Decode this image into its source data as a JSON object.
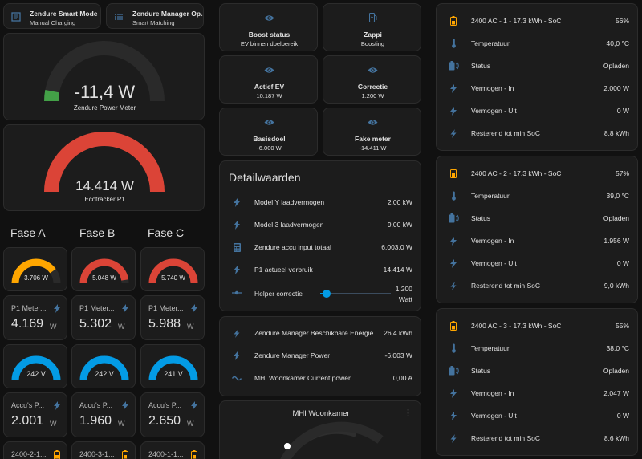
{
  "tiles_top": [
    {
      "title": "Zendure Smart Mode",
      "sub": "Manual Charging",
      "icon": "form-icon"
    },
    {
      "title": "Zendure Manager Op...",
      "sub": "Smart Matching",
      "icon": "list-icon"
    }
  ],
  "gauge_power": {
    "value": "-11,4 W",
    "label": "Zendure Power Meter",
    "fraction": 0.06,
    "color": "#43a047"
  },
  "gauge_ecotracker": {
    "value": "14.414 W",
    "label": "Ecotracker P1",
    "fraction": 1.0,
    "color": "#db4437"
  },
  "phases": {
    "titles": [
      "Fase A",
      "Fase B",
      "Fase C"
    ],
    "power_gauges": [
      {
        "value": "3.706 W",
        "fraction": 0.8,
        "color": "#ffa600"
      },
      {
        "value": "5.048 W",
        "fraction": 0.95,
        "color": "#db4437"
      },
      {
        "value": "5.740 W",
        "fraction": 1.0,
        "color": "#db4437"
      }
    ],
    "meters": [
      {
        "name": "P1 Meter...",
        "value": "4.169",
        "unit": "W"
      },
      {
        "name": "P1 Meter...",
        "value": "5.302",
        "unit": "W"
      },
      {
        "name": "P1 Meter...",
        "value": "5.988",
        "unit": "W"
      }
    ],
    "voltage_gauges": [
      {
        "value": "242 V",
        "fraction": 1.0,
        "color": "#039be5"
      },
      {
        "value": "242 V",
        "fraction": 1.0,
        "color": "#039be5"
      },
      {
        "value": "241 V",
        "fraction": 1.0,
        "color": "#039be5"
      }
    ],
    "accus": [
      {
        "name": "Accu's P...",
        "value": "2.001",
        "unit": "W"
      },
      {
        "name": "Accu's P...",
        "value": "1.960",
        "unit": "W"
      },
      {
        "name": "Accu's P...",
        "value": "2.650",
        "unit": "W"
      }
    ],
    "bottom": [
      "2400-2-1...",
      "2400-3-1...",
      "2400-1-1..."
    ]
  },
  "status_tiles": [
    {
      "title": "Boost status",
      "value": "EV binnen doelbereik",
      "icon": "eye-icon"
    },
    {
      "title": "Zappi",
      "value": "Boosting",
      "icon": "ev-station-icon"
    },
    {
      "title": "Actief EV",
      "value": "10.187 W",
      "icon": "eye-icon"
    },
    {
      "title": "Correctie",
      "value": "1.200 W",
      "icon": "eye-icon"
    },
    {
      "title": "Basisdoel",
      "value": "-6.000 W",
      "icon": "eye-icon"
    },
    {
      "title": "Fake meter",
      "value": "-14.411 W",
      "icon": "eye-icon"
    }
  ],
  "detail": {
    "title": "Detailwaarden",
    "rows": [
      {
        "label": "Model Y laadvermogen",
        "value": "2,00 kW",
        "icon": "flash-icon"
      },
      {
        "label": "Model 3 laadvermogen",
        "value": "9,00 kW",
        "icon": "flash-icon"
      },
      {
        "label": "Zendure accu input totaal",
        "value": "6.003,0 W",
        "icon": "calculator-icon"
      },
      {
        "label": "P1 actueel verbruik",
        "value": "14.414 W",
        "icon": "flash-icon"
      }
    ],
    "slider": {
      "label": "Helper correctie",
      "value": "1.200",
      "unit": "Watt",
      "fraction": 0.09
    }
  },
  "manager": {
    "rows": [
      {
        "label": "Zendure Manager Beschikbare Energie",
        "value": "26,4 kWh",
        "icon": "lightning-icon"
      },
      {
        "label": "Zendure Manager Power",
        "value": "-6.003 W",
        "icon": "flash-icon"
      },
      {
        "label": "MHI Woonkamer Current power",
        "value": "0,00 A",
        "icon": "current-ac-icon"
      }
    ]
  },
  "climate": {
    "title": "MHI Woonkamer",
    "menu": "⋮"
  },
  "batteries": [
    {
      "name": "2400 AC - 1 - 17.3 kWh - SoC",
      "soc": "56%",
      "rows": [
        {
          "label": "Temperatuur",
          "value": "40,0 °C",
          "icon": "thermometer-icon"
        },
        {
          "label": "Status",
          "value": "Opladen",
          "icon": "battery-charging-icon"
        },
        {
          "label": "Vermogen - In",
          "value": "2.000 W",
          "icon": "flash-icon"
        },
        {
          "label": "Vermogen - Uit",
          "value": "0 W",
          "icon": "flash-icon"
        },
        {
          "label": "Resterend tot min SoC",
          "value": "8,8 kWh",
          "icon": "lightning-icon"
        }
      ]
    },
    {
      "name": "2400 AC - 2 - 17.3 kWh - SoC",
      "soc": "57%",
      "rows": [
        {
          "label": "Temperatuur",
          "value": "39,0 °C",
          "icon": "thermometer-icon"
        },
        {
          "label": "Status",
          "value": "Opladen",
          "icon": "battery-charging-icon"
        },
        {
          "label": "Vermogen - In",
          "value": "1.956 W",
          "icon": "flash-icon"
        },
        {
          "label": "Vermogen - Uit",
          "value": "0 W",
          "icon": "flash-icon"
        },
        {
          "label": "Resterend tot min SoC",
          "value": "9,0 kWh",
          "icon": "lightning-icon"
        }
      ]
    },
    {
      "name": "2400 AC - 3 - 17.3 kWh - SoC",
      "soc": "55%",
      "rows": [
        {
          "label": "Temperatuur",
          "value": "38,0 °C",
          "icon": "thermometer-icon"
        },
        {
          "label": "Status",
          "value": "Opladen",
          "icon": "battery-charging-icon"
        },
        {
          "label": "Vermogen - In",
          "value": "2.047 W",
          "icon": "flash-icon"
        },
        {
          "label": "Vermogen - Uit",
          "value": "0 W",
          "icon": "flash-icon"
        },
        {
          "label": "Resterend tot min SoC",
          "value": "8,6 kWh",
          "icon": "lightning-icon"
        }
      ]
    }
  ],
  "colors": {
    "accent": "#44739e",
    "battery": "#ffa600",
    "track": "#2a2a2a"
  }
}
